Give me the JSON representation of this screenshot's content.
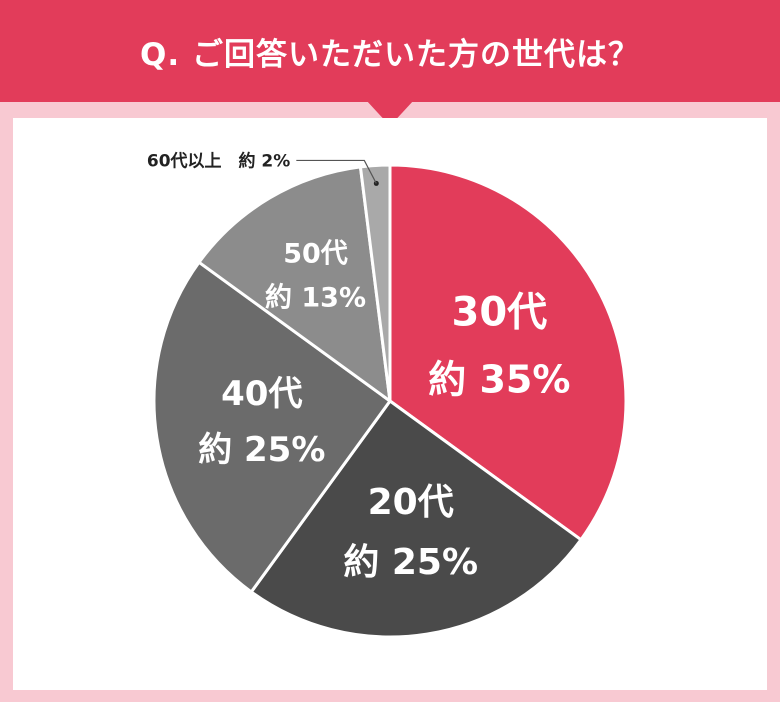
{
  "header": {
    "title": "Q. ご回答いただいた方の世代は？"
  },
  "colors": {
    "header_bg": "#e23c5a",
    "page_bg": "#f8c9d2",
    "card_bg": "#ffffff"
  },
  "chart_data": {
    "type": "pie",
    "title": "Q. ご回答いただいた方の世代は？",
    "start": "top (12 o'clock), clockwise",
    "slices": [
      {
        "category": "30代",
        "value": 35,
        "value_label": "約 35%",
        "color": "#e23c5a",
        "text_color": "#ffffff"
      },
      {
        "category": "20代",
        "value": 25,
        "value_label": "約 25%",
        "color": "#4a4a4a",
        "text_color": "#ffffff"
      },
      {
        "category": "40代",
        "value": 25,
        "value_label": "約 25%",
        "color": "#6b6b6b",
        "text_color": "#ffffff"
      },
      {
        "category": "50代",
        "value": 13,
        "value_label": "約 13%",
        "color": "#8c8c8c",
        "text_color": "#ffffff"
      },
      {
        "category": "60代以上",
        "value": 2,
        "value_label": "約 2%",
        "color": "#a9a9a9",
        "text_color": "#222222",
        "external_label": "60代以上　約 2%"
      }
    ]
  }
}
